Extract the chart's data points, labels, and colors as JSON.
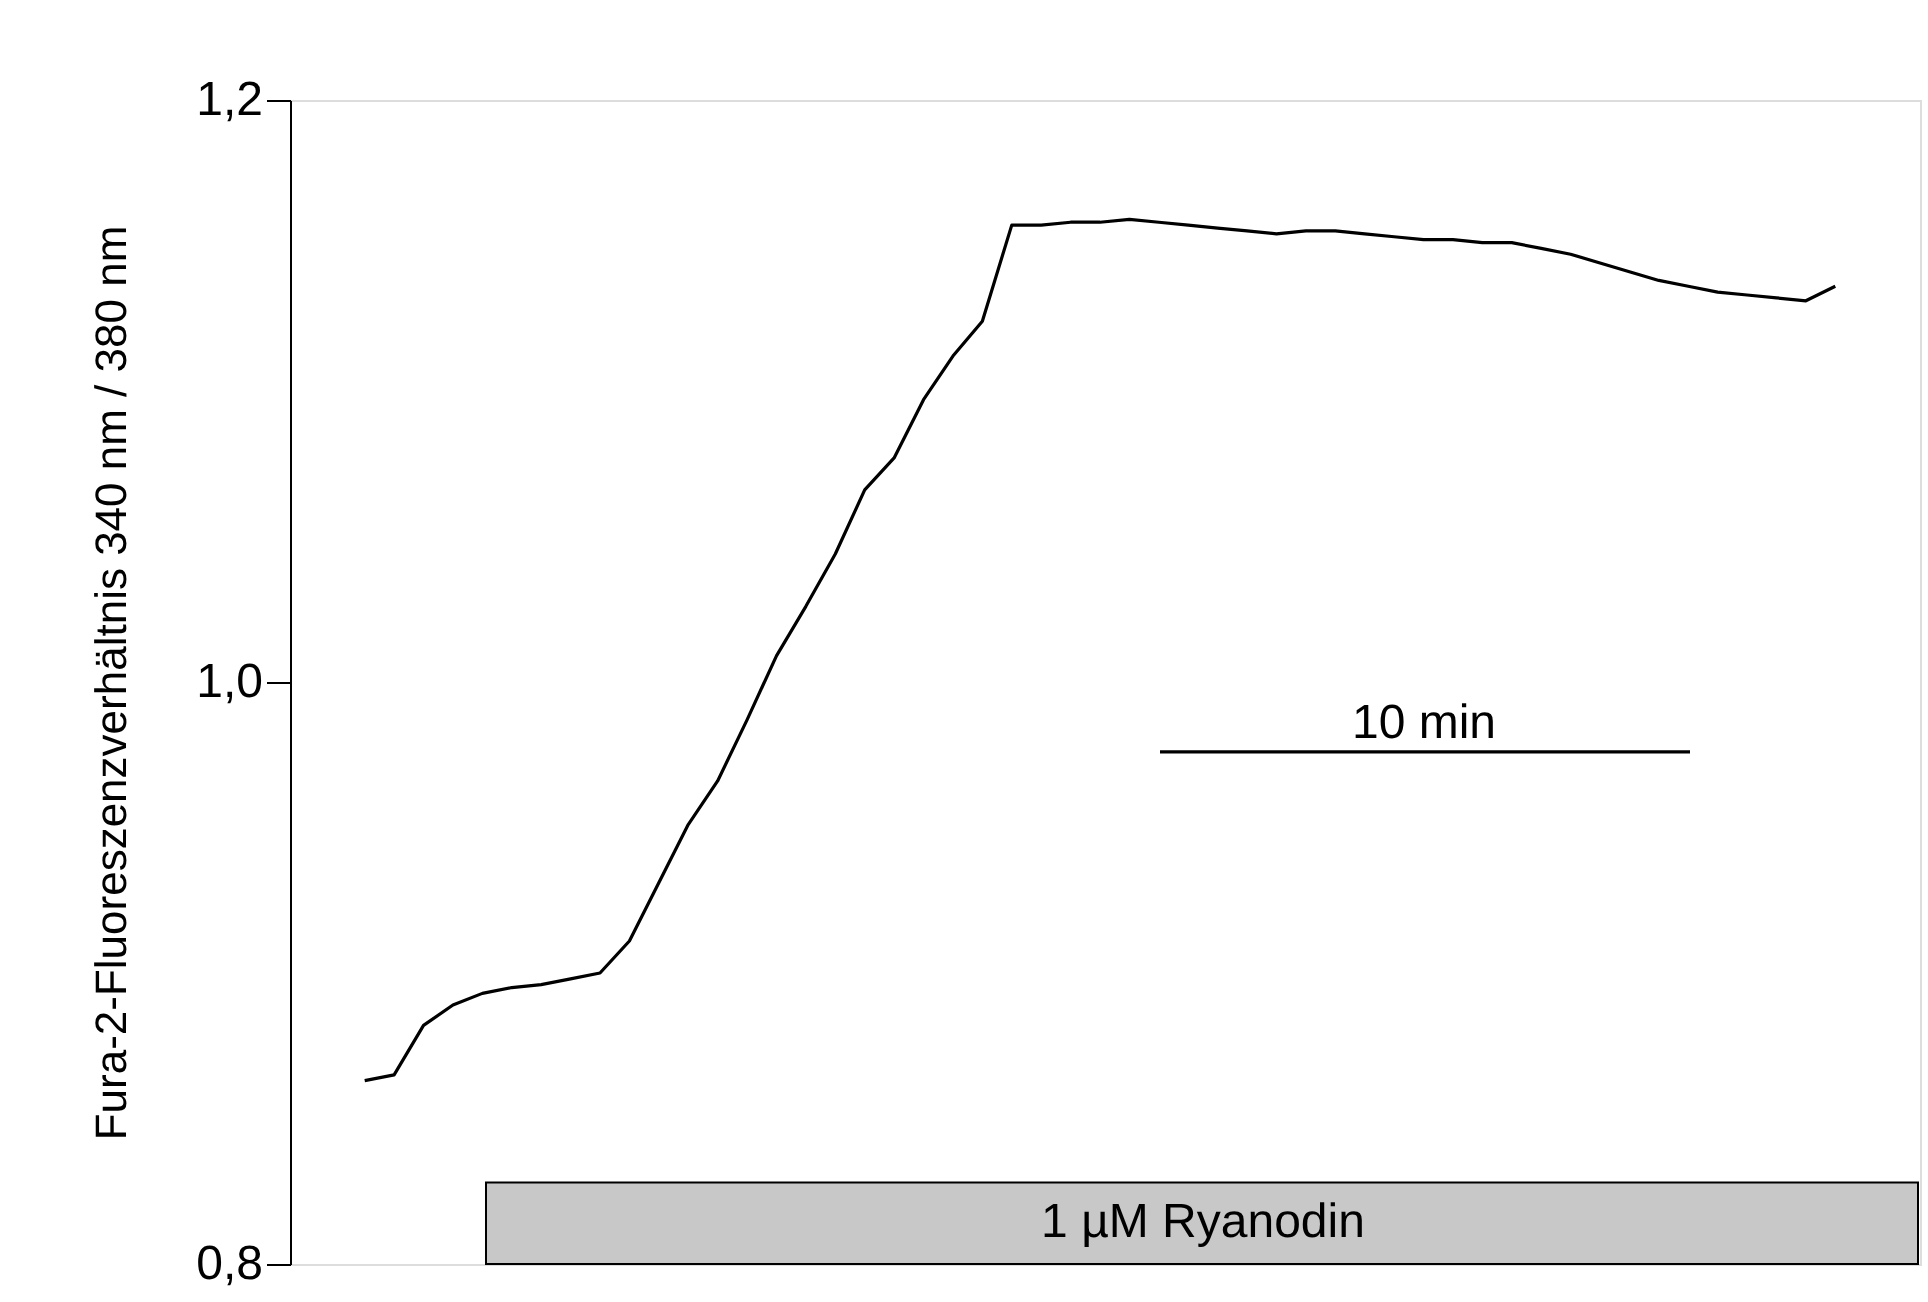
{
  "chart_data": {
    "type": "line",
    "ylabel": "Fura-2-Fluoreszenzverhältnis 340 nm / 380 nm",
    "ylim": [
      0.8,
      1.2
    ],
    "yticks": [
      {
        "value": 0.8,
        "label": "0,8"
      },
      {
        "value": 1.0,
        "label": "1,0"
      },
      {
        "value": 1.2,
        "label": "1,2"
      }
    ],
    "tick_labels": "y",
    "categories": [
      null,
      null,
      null,
      null,
      null,
      null,
      null,
      null,
      null,
      null,
      null,
      null,
      null,
      null,
      null,
      null,
      null,
      null,
      null,
      null,
      null,
      null,
      null,
      null,
      null,
      null,
      null,
      null,
      null,
      null,
      null,
      null,
      null,
      null,
      null,
      null,
      null,
      null,
      null,
      null,
      null,
      null,
      null,
      null,
      null,
      null,
      null,
      null,
      null,
      null,
      null
    ],
    "series": [
      {
        "color": "#000000",
        "values": [
          0.863,
          0.865,
          0.882,
          0.889,
          0.893,
          0.895,
          0.896,
          0.898,
          0.9,
          0.911,
          0.931,
          0.951,
          0.966,
          0.987,
          1.009,
          1.026,
          1.044,
          1.066,
          1.077,
          1.097,
          1.112,
          1.124,
          1.157,
          1.157,
          1.158,
          1.158,
          1.159,
          1.158,
          1.157,
          1.156,
          1.155,
          1.154,
          1.155,
          1.155,
          1.154,
          1.153,
          1.152,
          1.152,
          1.151,
          1.151,
          1.149,
          1.147,
          1.144,
          1.141,
          1.138,
          1.136,
          1.134,
          1.133,
          1.132,
          1.131,
          1.136
        ]
      }
    ],
    "ref_lines": [
      {
        "axis": "y",
        "value": 0.976,
        "label": "10 min",
        "color": "#000000"
      }
    ],
    "bands": [
      {
        "axis": "y",
        "from": 0.8,
        "to": 0.828,
        "label": "1 µM Ryanodin",
        "color": "#c8c8c8"
      }
    ]
  }
}
